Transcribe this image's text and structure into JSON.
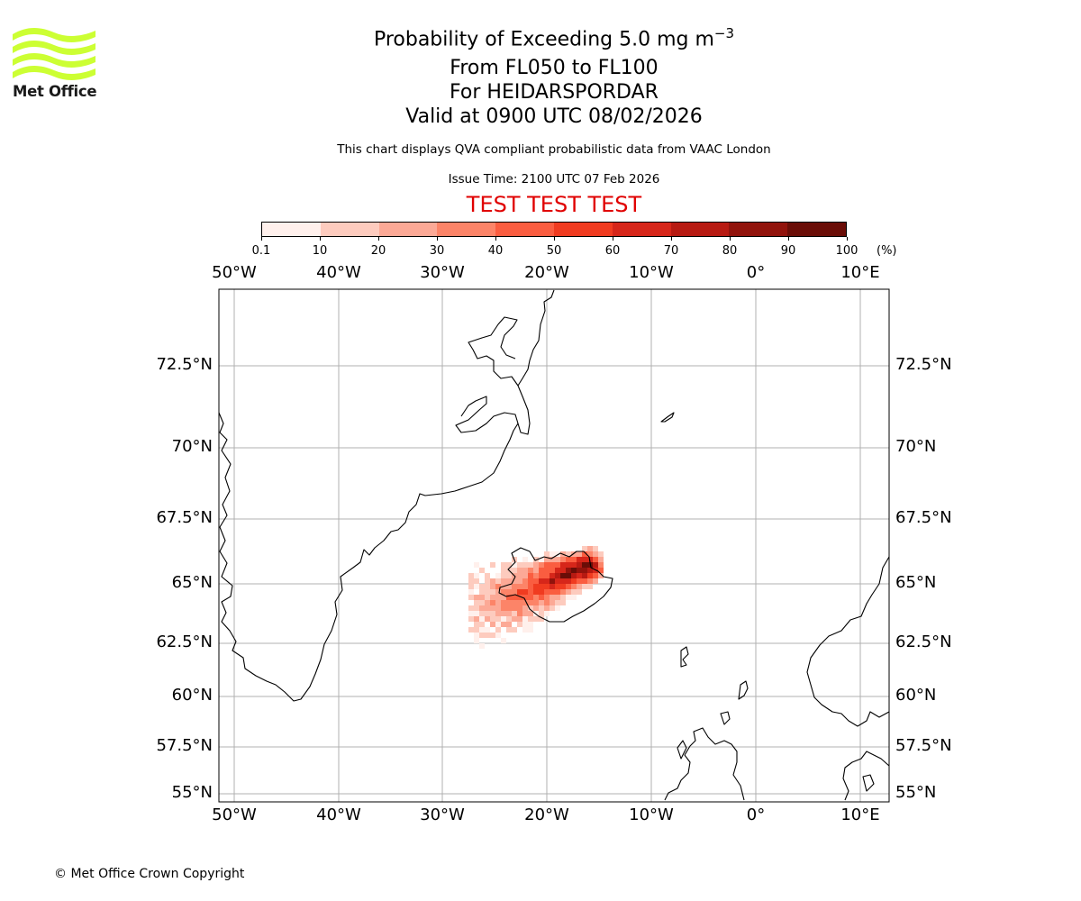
{
  "logo": {
    "text": "Met Office",
    "wave_color": "#ccff33"
  },
  "header": {
    "title_main": "Probability of Exceeding 5.0 mg m",
    "title_superscript": "−3",
    "line2": "From FL050 to FL100",
    "line3": "For HEIDARSPORDAR",
    "line4": "Valid at 0900 UTC 08/02/2026",
    "info": "This chart displays QVA compliant probabilistic data from VAAC London",
    "issue_time": "Issue Time: 2100 UTC 07 Feb 2026",
    "test_banner": "TEST TEST TEST",
    "test_color": "#e00000"
  },
  "colorbar": {
    "ticks": [
      "0.1",
      "10",
      "20",
      "30",
      "40",
      "50",
      "60",
      "70",
      "80",
      "90",
      "100"
    ],
    "unit": "(%)",
    "colors": [
      "#fff0ec",
      "#fdcbbe",
      "#fca996",
      "#fc8468",
      "#fa5d40",
      "#f03b20",
      "#d6261a",
      "#b71a12",
      "#91130c",
      "#6a0d07"
    ]
  },
  "map": {
    "lon_labels": [
      "50°W",
      "40°W",
      "30°W",
      "20°W",
      "10°W",
      "0°",
      "10°E"
    ],
    "lat_labels": [
      "72.5°N",
      "70°N",
      "67.5°N",
      "65°N",
      "62.5°N",
      "60°N",
      "57.5°N",
      "55°N"
    ],
    "region": "Iceland",
    "source_volcano": "HEIDARSPORDAR"
  },
  "footer": {
    "copyright": "© Met Office Crown Copyright"
  }
}
